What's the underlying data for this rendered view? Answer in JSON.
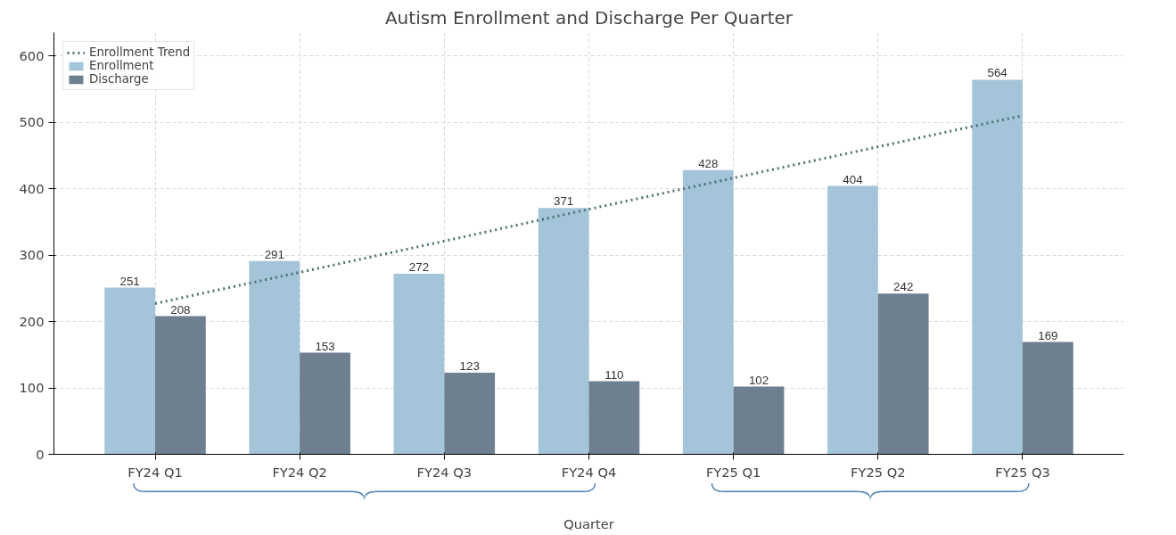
{
  "chart_data": {
    "type": "bar",
    "title": "Autism Enrollment and Discharge Per Quarter",
    "xlabel": "Quarter",
    "categories": [
      "FY24 Q1",
      "FY24 Q2",
      "FY24 Q3",
      "FY24 Q4",
      "FY25 Q1",
      "FY25 Q2",
      "FY25 Q3"
    ],
    "series": [
      {
        "name": "Enrollment Trend",
        "type": "line",
        "color": "#4d7272",
        "line_style": "dotted",
        "values": [
          227,
          274,
          321,
          369,
          416,
          463,
          510
        ]
      },
      {
        "name": "Enrollment",
        "color": "#a3c4d9",
        "values": [
          251,
          291,
          272,
          371,
          428,
          404,
          564
        ],
        "value_labels": [
          "251",
          "291",
          "272",
          "371",
          "428",
          "404",
          "564"
        ]
      },
      {
        "name": "Discharge",
        "color": "#6e7f8f",
        "values": [
          208,
          153,
          123,
          110,
          102,
          242,
          169
        ],
        "value_labels": [
          "208",
          "153",
          "123",
          "110",
          "102",
          "242",
          "169"
        ]
      }
    ],
    "ylim": [
      0,
      635
    ],
    "yticks": [
      0,
      100,
      200,
      300,
      400,
      500,
      600
    ],
    "grid": true,
    "legend": "top left"
  }
}
